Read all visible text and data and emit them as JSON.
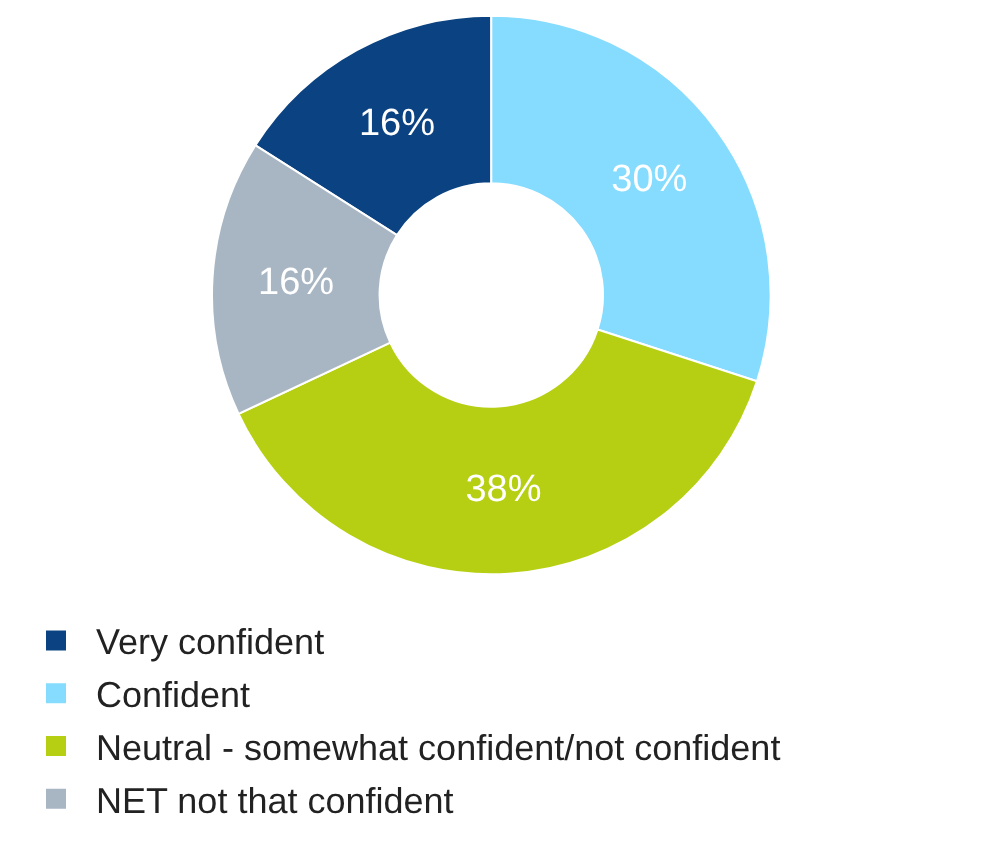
{
  "chart_data": {
    "type": "donut",
    "categories": [
      "Very confident",
      "Confident",
      "Neutral - somewhat confident/not confident",
      "NET not that confident"
    ],
    "values": [
      16,
      30,
      38,
      16
    ],
    "value_labels": [
      "16%",
      "30%",
      "38%",
      "16%"
    ],
    "colors": [
      "#0b4281",
      "#85dcff",
      "#b7cf12",
      "#a8b6c4"
    ],
    "legend": "bottom"
  }
}
